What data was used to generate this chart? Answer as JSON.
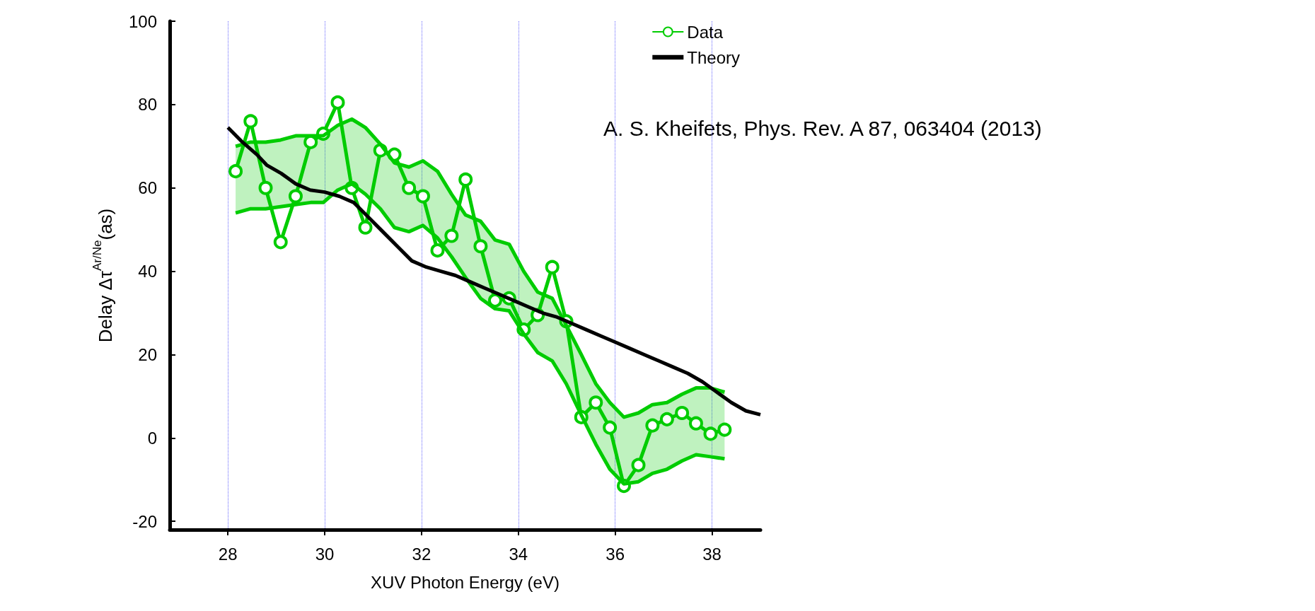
{
  "chart_data": {
    "type": "line",
    "xlabel": "XUV Photon Energy (eV)",
    "ylabel": "Delay Δτ$^{Ar/Ne}$(as)",
    "xlim": [
      26.8,
      39
    ],
    "xticks": [
      28,
      30,
      32,
      34,
      36,
      38
    ],
    "ylim": [
      -22,
      100
    ],
    "yticks": [
      -20,
      0,
      20,
      40,
      60,
      80,
      100
    ],
    "grid": "x",
    "legend": "top right",
    "annotations": [
      "A. S. Kheifets, Phys. Rev. A 87, 063404 (2013)"
    ],
    "series": [
      {
        "name": "Data",
        "color": "#00cc00",
        "marker": "circle",
        "x": [
          28.16,
          28.47,
          28.78,
          29.09,
          29.4,
          29.71,
          29.97,
          30.27,
          30.56,
          30.84,
          31.15,
          31.44,
          31.74,
          32.03,
          32.33,
          32.62,
          32.91,
          33.22,
          33.52,
          33.81,
          34.11,
          34.4,
          34.7,
          34.99,
          35.3,
          35.6,
          35.89,
          36.18,
          36.48,
          36.77,
          37.07,
          37.38,
          37.67,
          37.97,
          38.26
        ],
        "values": [
          64,
          76,
          60,
          47,
          58,
          71,
          73,
          80.5,
          60,
          50.5,
          69,
          68,
          60,
          58,
          45,
          48.5,
          62,
          46,
          33,
          33.5,
          26,
          29.5,
          41,
          28,
          5,
          8.5,
          2.5,
          -11.5,
          -6.5,
          3,
          4.5,
          6,
          3.5,
          1,
          2
        ],
        "lower": [
          54,
          55,
          55,
          55.5,
          56,
          56.5,
          56.5,
          59.5,
          61,
          58.5,
          55,
          50.5,
          49.5,
          51,
          48,
          43.5,
          38.5,
          33.5,
          31,
          30.5,
          25,
          20.5,
          18.5,
          13,
          5.5,
          -1.5,
          -7.5,
          -11,
          -10.5,
          -8.5,
          -7.5,
          -5.5,
          -4,
          -4.5,
          -5
        ],
        "upper": [
          70,
          71,
          71,
          71.5,
          72.5,
          72.5,
          72.5,
          75,
          76.5,
          74.5,
          70.5,
          66,
          65,
          66.5,
          64,
          58.5,
          53.5,
          52,
          47.5,
          46.5,
          40,
          35,
          33.5,
          27,
          20,
          13,
          8.5,
          5,
          6,
          8,
          8.5,
          10.5,
          12,
          12,
          11
        ]
      },
      {
        "color": "#00cc00",
        "marker": "none",
        "x": [
          28.16,
          28.47,
          28.78,
          29.09,
          29.4,
          29.71,
          29.97,
          30.27,
          30.56,
          30.84,
          31.15,
          31.44,
          31.74,
          32.03,
          32.33,
          32.62,
          32.91,
          33.22,
          33.52,
          33.81,
          34.11,
          34.4,
          34.7,
          34.99,
          35.3,
          35.6,
          35.89,
          36.18,
          36.48,
          36.77,
          37.07,
          37.38,
          37.67,
          37.97,
          38.26
        ],
        "values": [
          70,
          71,
          71,
          71.5,
          72.5,
          72.5,
          72.5,
          75,
          76.5,
          74.5,
          70.5,
          66,
          65,
          66.5,
          64,
          58.5,
          53.5,
          52,
          47.5,
          46.5,
          40,
          35,
          33.5,
          27,
          20,
          13,
          8.5,
          5,
          6,
          8,
          8.5,
          10.5,
          12,
          12,
          11
        ]
      },
      {
        "color": "#00cc00",
        "marker": "none",
        "x": [
          28.16,
          28.47,
          28.78,
          29.09,
          29.4,
          29.71,
          29.97,
          30.27,
          30.56,
          30.84,
          31.15,
          31.44,
          31.74,
          32.03,
          32.33,
          32.62,
          32.91,
          33.22,
          33.52,
          33.81,
          34.11,
          34.4,
          34.7,
          34.99,
          35.3,
          35.6,
          35.89,
          36.18,
          36.48,
          36.77,
          37.07,
          37.38,
          37.67,
          37.97,
          38.26
        ],
        "values": [
          54,
          55,
          55,
          55.5,
          56,
          56.5,
          56.5,
          59.5,
          61,
          58.5,
          55,
          50.5,
          49.5,
          51,
          48,
          43.5,
          38.5,
          33.5,
          31,
          30.5,
          25,
          20.5,
          18.5,
          13,
          5.5,
          -1.5,
          -7.5,
          -11,
          -10.5,
          -8.5,
          -7.5,
          -5.5,
          -4,
          -4.5,
          -5
        ]
      },
      {
        "name": "Theory",
        "color": "#000000",
        "marker": "none",
        "x": [
          28.0,
          28.3,
          28.6,
          28.8,
          29.1,
          29.4,
          29.7,
          30.0,
          30.3,
          30.6,
          30.9,
          31.2,
          31.5,
          31.8,
          32.1,
          32.4,
          32.7,
          33.0,
          33.3,
          33.6,
          33.9,
          34.2,
          34.5,
          34.8,
          35.1,
          35.4,
          35.7,
          36.0,
          36.3,
          36.6,
          36.9,
          37.2,
          37.5,
          37.8,
          38.1,
          38.4,
          38.7,
          39.0
        ],
        "values": [
          74.5,
          71,
          68,
          65.5,
          63.5,
          61,
          59.5,
          59,
          58,
          56.5,
          53,
          49.5,
          46,
          42.5,
          41,
          40,
          39,
          37.5,
          36,
          34.5,
          33,
          31.5,
          30,
          29,
          27.5,
          26,
          24.5,
          23,
          21.5,
          20,
          18.5,
          17,
          15.5,
          13.5,
          11,
          8.5,
          6.5,
          5.6
        ]
      }
    ]
  }
}
